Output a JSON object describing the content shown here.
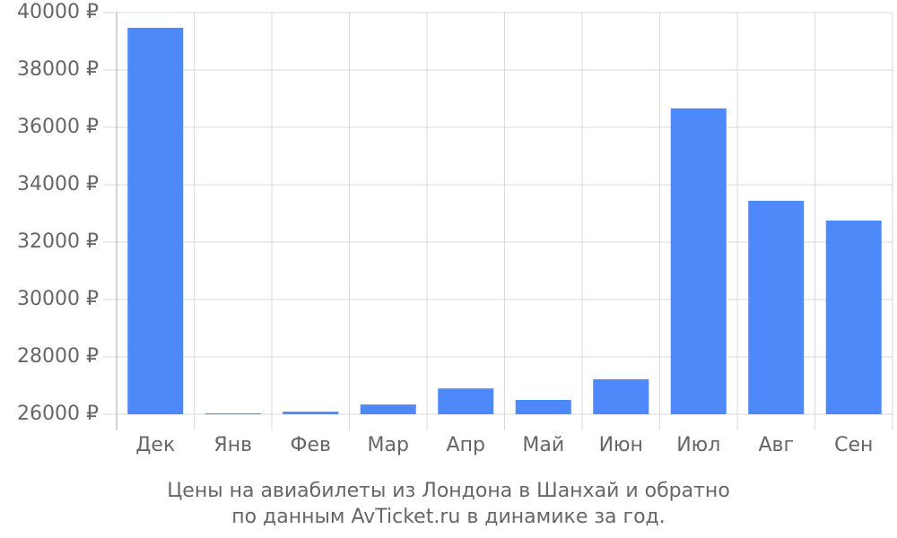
{
  "chart_data": {
    "type": "bar",
    "caption": [
      "Цены на авиабилеты из Лондона в Шанхай и обратно",
      "по данным AvTicket.ru в динамике за год."
    ],
    "categories": [
      "Дек",
      "Янв",
      "Фев",
      "Мар",
      "Апр",
      "Май",
      "Июн",
      "Июл",
      "Авг",
      "Сен"
    ],
    "values": [
      39470,
      26030,
      26090,
      26340,
      26900,
      26500,
      27220,
      36660,
      33440,
      32750
    ],
    "color": "#4d89f9",
    "ylim": [
      26000,
      40000
    ],
    "yticks": [
      {
        "value": 26000,
        "label": "26000 ₽"
      },
      {
        "value": 28000,
        "label": "28000 ₽"
      },
      {
        "value": 30000,
        "label": "30000 ₽"
      },
      {
        "value": 32000,
        "label": "32000 ₽"
      },
      {
        "value": 34000,
        "label": "34000 ₽"
      },
      {
        "value": 36000,
        "label": "36000 ₽"
      },
      {
        "value": 38000,
        "label": "38000 ₽"
      },
      {
        "value": 40000,
        "label": "40000 ₽"
      }
    ],
    "grid": true
  }
}
